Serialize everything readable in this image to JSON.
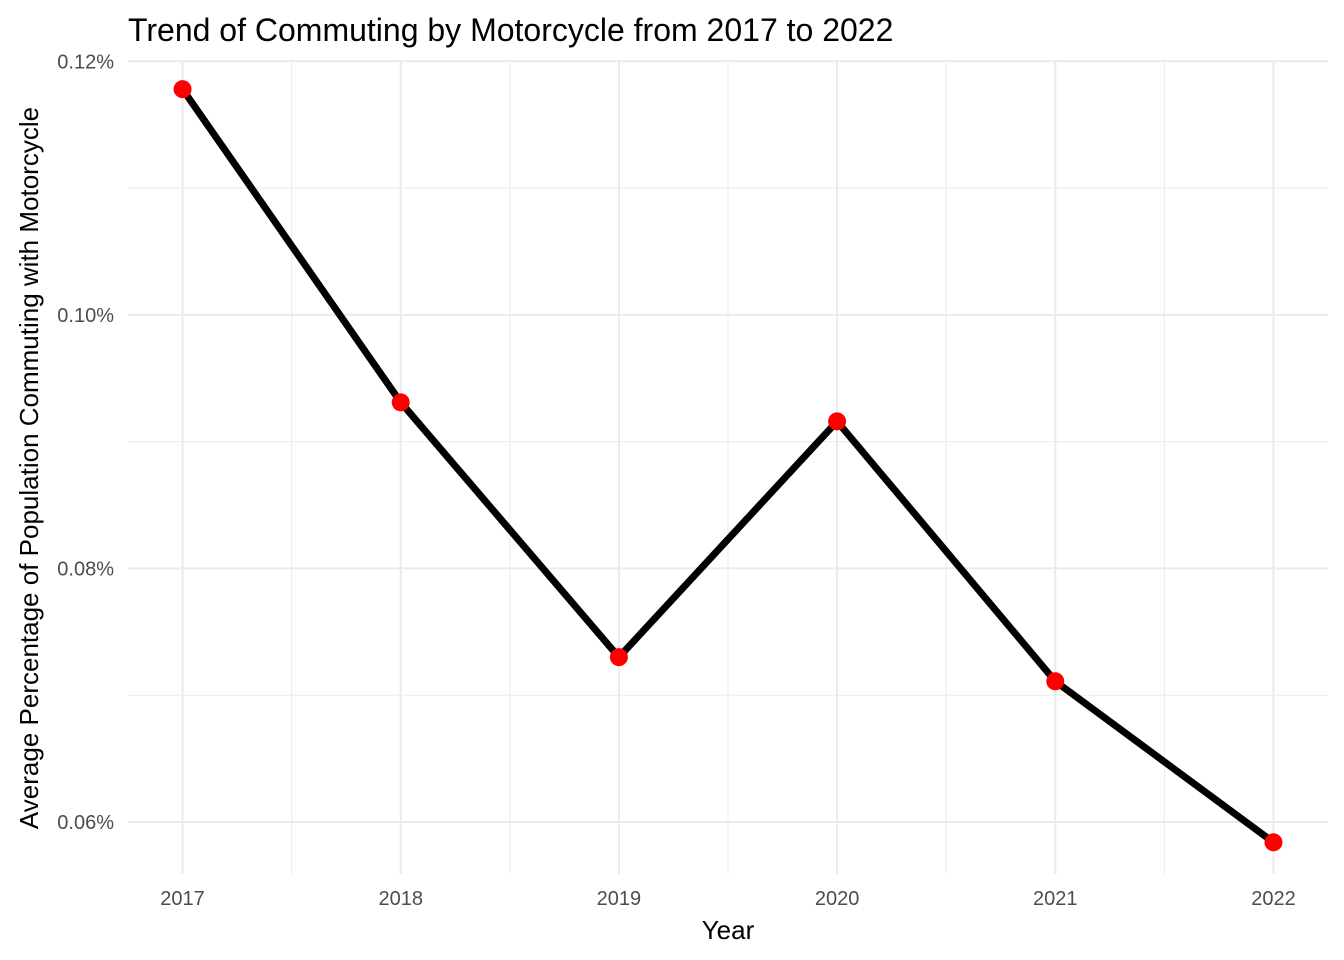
{
  "chart_data": {
    "type": "line",
    "title": "Trend of Commuting by Motorcycle from 2017 to 2022",
    "xlabel": "Year",
    "ylabel": "Average Percentage of Population Commuting with Motorcycle",
    "x": [
      2017,
      2018,
      2019,
      2020,
      2021,
      2022
    ],
    "x_tick_labels": [
      "2017",
      "2018",
      "2019",
      "2020",
      "2021",
      "2022"
    ],
    "y": [
      0.1178,
      0.0931,
      0.073,
      0.0916,
      0.0711,
      0.0584
    ],
    "y_unit": "%",
    "y_ticks": [
      0.06,
      0.08,
      0.1,
      0.12
    ],
    "y_tick_labels": [
      "0.06%",
      "0.08%",
      "0.10%",
      "0.12%"
    ],
    "xlim": [
      2016.75,
      2022.25
    ],
    "ylim": [
      0.0559,
      0.1201
    ],
    "grid": true,
    "legend": "none",
    "line_color": "#000000",
    "point_color": "#ff0000",
    "grid_color": "#ebebeb"
  }
}
